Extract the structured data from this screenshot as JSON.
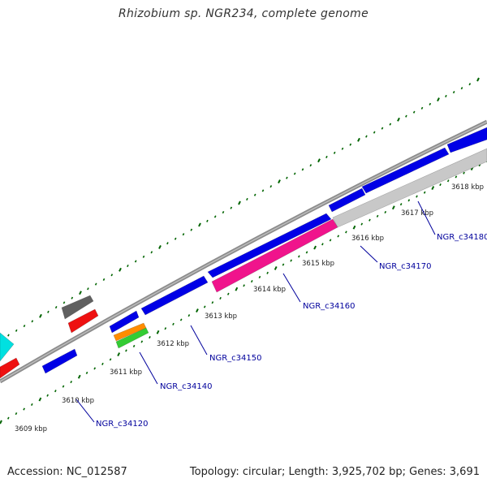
{
  "title": "Rhizobium sp. NGR234, complete genome",
  "footer": {
    "accession": "Accession: NC_012587",
    "summary": "Topology: circular; Length: 3,925,702 bp; Genes: 3,691"
  },
  "colors": {
    "backbone": "#8c8c8c",
    "gene_blue": "#0000e6",
    "gene_pink": "#f0148c",
    "gene_grey_light": "#c8c8c8",
    "gene_dark": "#606060",
    "gene_red": "#ee1111",
    "gene_cyan": "#00e0e0",
    "gene_orange": "#ff8c00",
    "gene_green": "#33cc33",
    "tick_green": "#006400",
    "label_blue": "#00009c"
  },
  "scale_ticks": [
    {
      "label": "3609 kbp"
    },
    {
      "label": "3610 kbp"
    },
    {
      "label": "3611 kbp"
    },
    {
      "label": "3612 kbp"
    },
    {
      "label": "3613 kbp"
    },
    {
      "label": "3614 kbp"
    },
    {
      "label": "3615 kbp"
    },
    {
      "label": "3616 kbp"
    },
    {
      "label": "3617 kbp"
    },
    {
      "label": "3618 kbp"
    }
  ],
  "gene_labels": [
    {
      "label": "NGR_c34120"
    },
    {
      "label": "NGR_c34140"
    },
    {
      "label": "NGR_c34150"
    },
    {
      "label": "NGR_c34160"
    },
    {
      "label": "NGR_c34170"
    },
    {
      "label": "NGR_c34180"
    }
  ]
}
